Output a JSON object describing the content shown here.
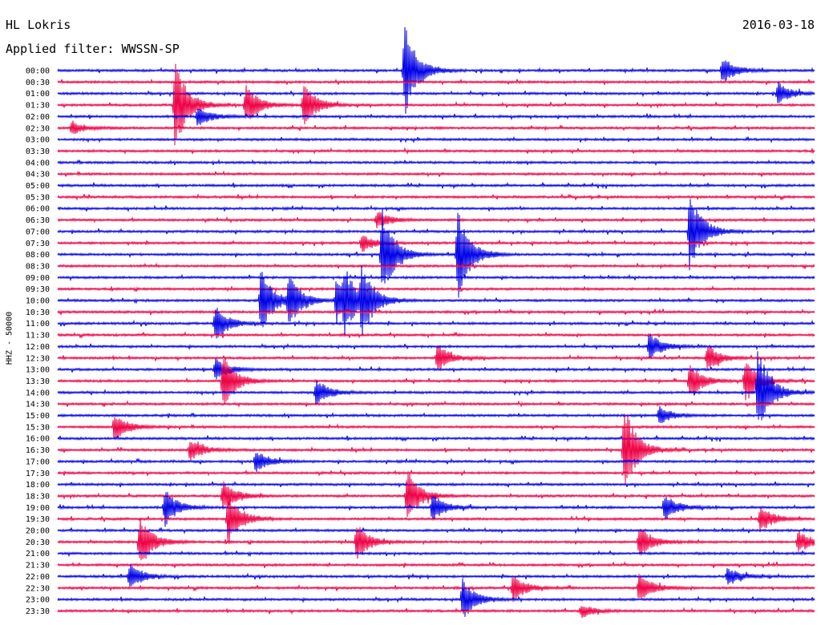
{
  "header": {
    "station": "HL Lokris",
    "date": "2016-03-18",
    "filter": "Applied filter: WWSSN-SP"
  },
  "chart_data": {
    "type": "line",
    "title": "HL Lokris",
    "subtitle": "Applied filter: WWSSN-SP",
    "ylabel": "HHZ - 50000",
    "colors": [
      "#0000e6",
      "#ee0044"
    ],
    "row_labels": [
      "00:00",
      "00:30",
      "01:00",
      "01:30",
      "02:00",
      "02:30",
      "03:00",
      "03:30",
      "04:00",
      "04:30",
      "05:00",
      "05:30",
      "06:00",
      "06:30",
      "07:00",
      "07:30",
      "08:00",
      "08:30",
      "09:00",
      "09:30",
      "10:00",
      "10:30",
      "11:00",
      "11:30",
      "12:00",
      "12:30",
      "13:00",
      "13:30",
      "14:00",
      "14:30",
      "15:00",
      "15:30",
      "16:00",
      "16:30",
      "17:00",
      "17:30",
      "18:00",
      "18:30",
      "19:00",
      "19:30",
      "20:00",
      "20:30",
      "21:00",
      "21:30",
      "22:00",
      "22:30",
      "23:00",
      "23:30"
    ],
    "events": [
      {
        "row": 0,
        "min": 13.7,
        "amp": 1.0
      },
      {
        "row": 0,
        "min": 26.3,
        "amp": 0.3
      },
      {
        "row": 2,
        "min": 28.5,
        "amp": 0.25
      },
      {
        "row": 3,
        "min": 4.6,
        "amp": 1.0
      },
      {
        "row": 3,
        "min": 7.4,
        "amp": 0.45
      },
      {
        "row": 3,
        "min": 9.7,
        "amp": 0.5
      },
      {
        "row": 4,
        "min": 5.5,
        "amp": 0.25
      },
      {
        "row": 5,
        "min": 0.5,
        "amp": 0.15
      },
      {
        "row": 13,
        "min": 12.6,
        "amp": 0.2
      },
      {
        "row": 14,
        "min": 25.0,
        "amp": 0.9
      },
      {
        "row": 15,
        "min": 12.0,
        "amp": 0.2
      },
      {
        "row": 16,
        "min": 12.8,
        "amp": 1.0
      },
      {
        "row": 16,
        "min": 15.8,
        "amp": 1.0
      },
      {
        "row": 20,
        "min": 8.0,
        "amp": 0.7
      },
      {
        "row": 20,
        "min": 9.1,
        "amp": 0.6
      },
      {
        "row": 20,
        "min": 11.0,
        "amp": 0.5
      },
      {
        "row": 20,
        "min": 11.3,
        "amp": 0.55
      },
      {
        "row": 20,
        "min": 12.0,
        "amp": 0.7
      },
      {
        "row": 22,
        "min": 6.2,
        "amp": 0.4
      },
      {
        "row": 24,
        "min": 23.4,
        "amp": 0.3
      },
      {
        "row": 25,
        "min": 15.0,
        "amp": 0.3
      },
      {
        "row": 25,
        "min": 25.7,
        "amp": 0.3
      },
      {
        "row": 26,
        "min": 6.2,
        "amp": 0.25
      },
      {
        "row": 27,
        "min": 6.5,
        "amp": 0.6
      },
      {
        "row": 27,
        "min": 25.0,
        "amp": 0.4
      },
      {
        "row": 27,
        "min": 27.2,
        "amp": 0.5
      },
      {
        "row": 28,
        "min": 27.7,
        "amp": 1.0
      },
      {
        "row": 28,
        "min": 10.2,
        "amp": 0.3
      },
      {
        "row": 30,
        "min": 23.8,
        "amp": 0.2
      },
      {
        "row": 31,
        "min": 2.2,
        "amp": 0.3
      },
      {
        "row": 33,
        "min": 22.4,
        "amp": 1.0
      },
      {
        "row": 33,
        "min": 5.2,
        "amp": 0.25
      },
      {
        "row": 34,
        "min": 7.8,
        "amp": 0.25
      },
      {
        "row": 37,
        "min": 6.5,
        "amp": 0.35
      },
      {
        "row": 37,
        "min": 13.8,
        "amp": 0.6
      },
      {
        "row": 38,
        "min": 4.2,
        "amp": 0.4
      },
      {
        "row": 38,
        "min": 14.8,
        "amp": 0.3
      },
      {
        "row": 38,
        "min": 24.0,
        "amp": 0.3
      },
      {
        "row": 39,
        "min": 6.7,
        "amp": 0.6
      },
      {
        "row": 39,
        "min": 27.8,
        "amp": 0.3
      },
      {
        "row": 41,
        "min": 3.2,
        "amp": 0.6
      },
      {
        "row": 41,
        "min": 11.8,
        "amp": 0.4
      },
      {
        "row": 41,
        "min": 23.0,
        "amp": 0.35
      },
      {
        "row": 41,
        "min": 29.3,
        "amp": 0.25
      },
      {
        "row": 44,
        "min": 2.8,
        "amp": 0.3
      },
      {
        "row": 44,
        "min": 26.5,
        "amp": 0.2
      },
      {
        "row": 45,
        "min": 18.0,
        "amp": 0.3
      },
      {
        "row": 45,
        "min": 23.0,
        "amp": 0.35
      },
      {
        "row": 46,
        "min": 16.0,
        "amp": 0.45
      },
      {
        "row": 47,
        "min": 20.7,
        "amp": 0.15
      }
    ]
  }
}
